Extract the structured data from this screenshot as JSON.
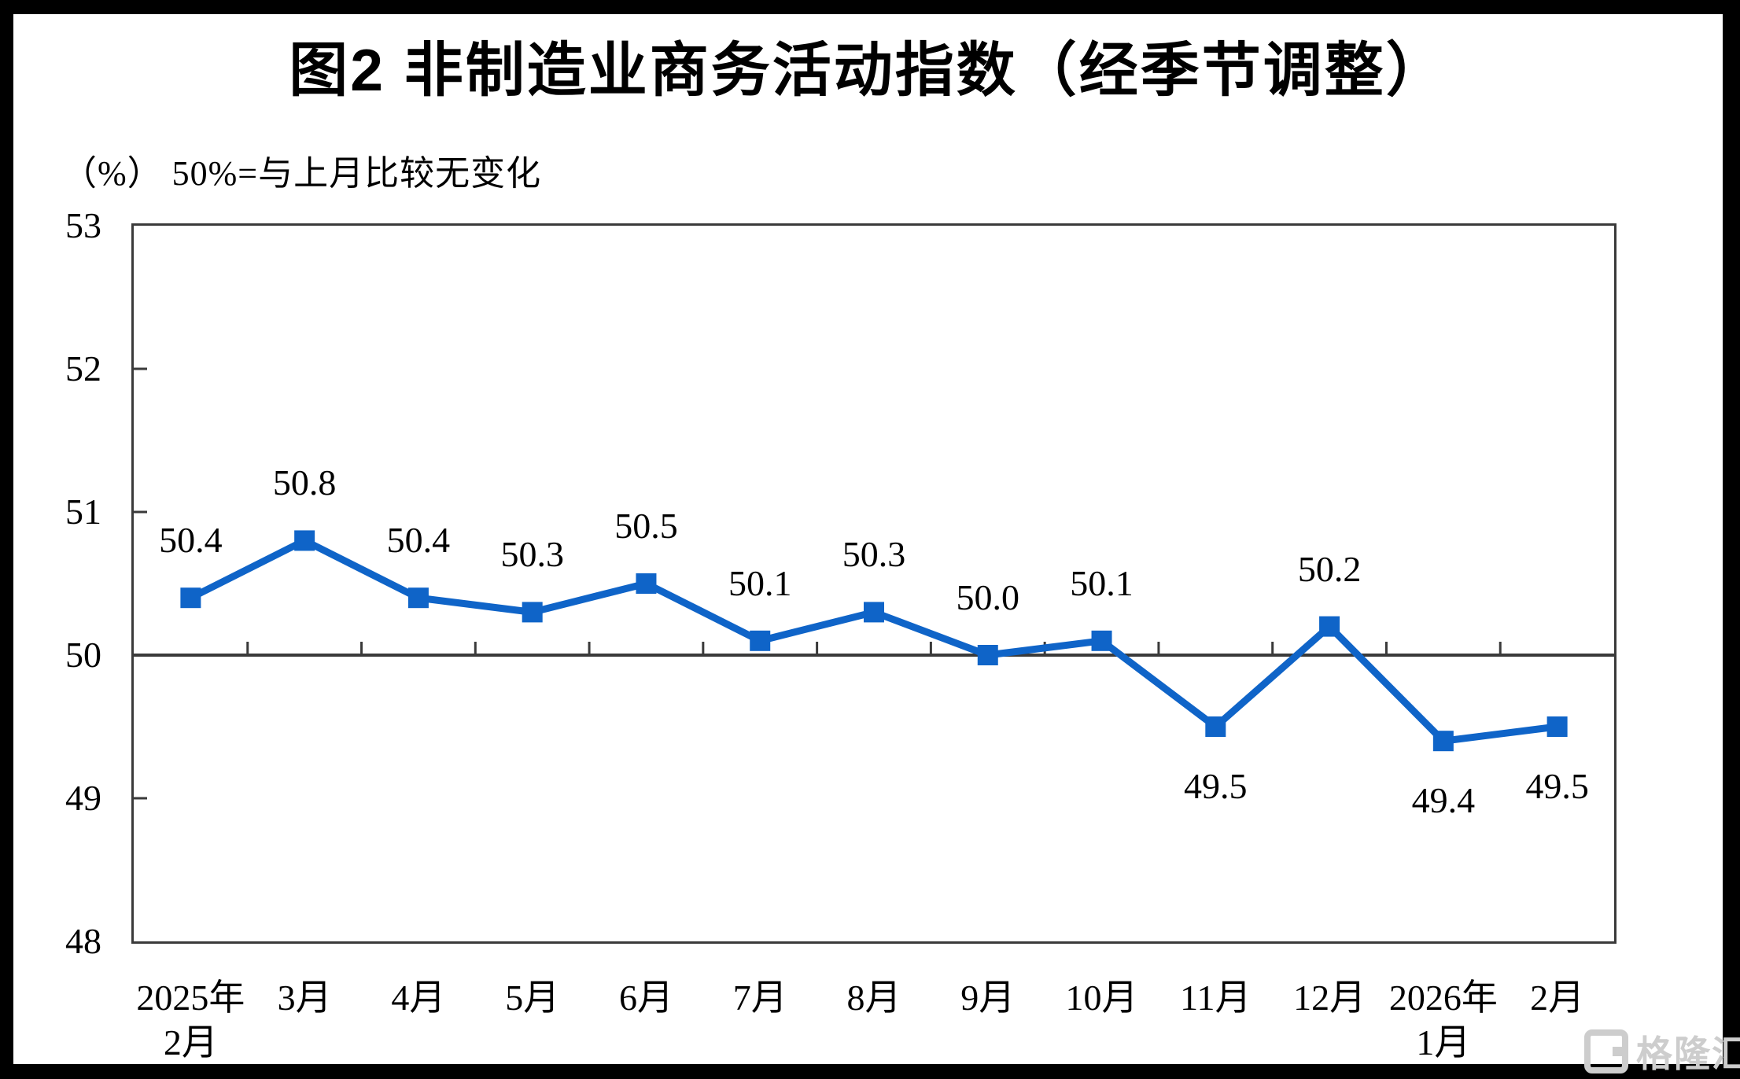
{
  "title": "图2  非制造业商务活动指数（经季节调整）",
  "subtitle": "（%） 50%=与上月比较无变化",
  "watermark": {
    "text": "格隆汇"
  },
  "colors": {
    "line": "#0f64c8",
    "axis": "#3a3a3a",
    "text": "#000000",
    "frame": "#000000",
    "canvas": "#ffffff",
    "watermark": "#cdcdcd"
  },
  "chart_data": {
    "type": "line",
    "title": "图2  非制造业商务活动指数（经季节调整）",
    "unit_note": "（%） 50%=与上月比较无变化",
    "categories": [
      [
        "2025年",
        "2月"
      ],
      [
        "3月"
      ],
      [
        "4月"
      ],
      [
        "5月"
      ],
      [
        "6月"
      ],
      [
        "7月"
      ],
      [
        "8月"
      ],
      [
        "9月"
      ],
      [
        "10月"
      ],
      [
        "11月"
      ],
      [
        "12月"
      ],
      [
        "2026年",
        "1月"
      ],
      [
        "2月"
      ]
    ],
    "values": [
      50.4,
      50.8,
      50.4,
      50.3,
      50.5,
      50.1,
      50.3,
      50.0,
      50.1,
      49.5,
      50.2,
      49.4,
      49.5
    ],
    "data_labels": [
      "50.4",
      "50.8",
      "50.4",
      "50.3",
      "50.5",
      "50.1",
      "50.3",
      "50.0",
      "50.1",
      "49.5",
      "50.2",
      "49.4",
      "49.5"
    ],
    "label_positions": [
      "above",
      "above",
      "above",
      "above",
      "above",
      "above",
      "above",
      "above",
      "above",
      "below",
      "above",
      "below",
      "below"
    ],
    "ylim": [
      48,
      53
    ],
    "y_ticks": [
      53,
      52,
      51,
      50,
      49,
      48
    ],
    "reference_line": 50,
    "marker": "square",
    "legend": "none",
    "grid": "off",
    "line_color": "#0f64c8",
    "axis_color": "#3a3a3a"
  }
}
